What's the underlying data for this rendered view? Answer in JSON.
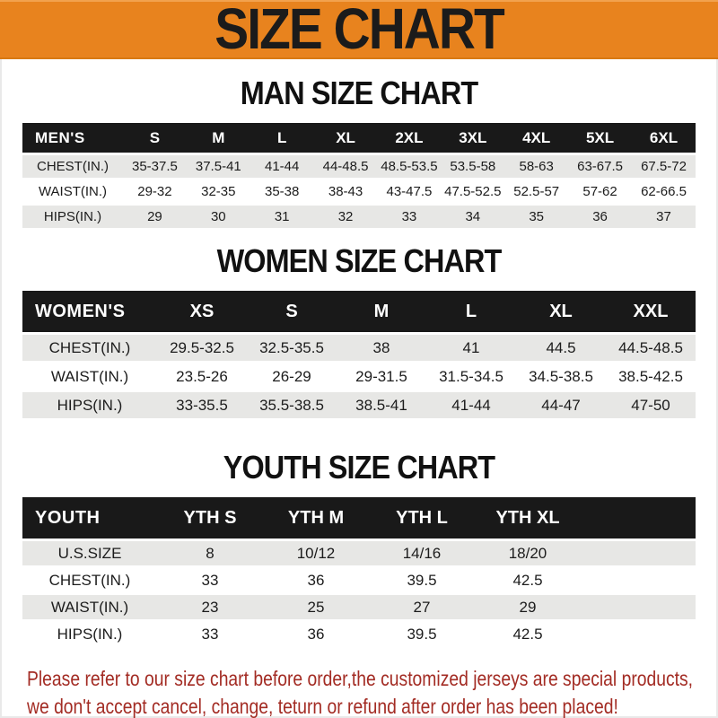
{
  "banner": {
    "title": "SIZE CHART"
  },
  "sections": [
    {
      "key": "men",
      "heading": "MAN SIZE CHART",
      "corner_label": "MEN'S",
      "columns": [
        "S",
        "M",
        "L",
        "XL",
        "2XL",
        "3XL",
        "4XL",
        "5XL",
        "6XL"
      ],
      "rows": [
        {
          "label": "CHEST(IN.)",
          "values": [
            "35-37.5",
            "37.5-41",
            "41-44",
            "44-48.5",
            "48.5-53.5",
            "53.5-58",
            "58-63",
            "63-67.5",
            "67.5-72"
          ]
        },
        {
          "label": "WAIST(IN.)",
          "values": [
            "29-32",
            "32-35",
            "35-38",
            "38-43",
            "43-47.5",
            "47.5-52.5",
            "52.5-57",
            "57-62",
            "62-66.5"
          ]
        },
        {
          "label": "HIPS(IN.)",
          "values": [
            "29",
            "30",
            "31",
            "32",
            "33",
            "34",
            "35",
            "36",
            "37"
          ]
        }
      ]
    },
    {
      "key": "women",
      "heading": "WOMEN SIZE CHART",
      "corner_label": "WOMEN'S",
      "columns": [
        "XS",
        "S",
        "M",
        "L",
        "XL",
        "XXL"
      ],
      "rows": [
        {
          "label": "CHEST(IN.)",
          "values": [
            "29.5-32.5",
            "32.5-35.5",
            "38",
            "41",
            "44.5",
            "44.5-48.5"
          ]
        },
        {
          "label": "WAIST(IN.)",
          "values": [
            "23.5-26",
            "26-29",
            "29-31.5",
            "31.5-34.5",
            "34.5-38.5",
            "38.5-42.5"
          ]
        },
        {
          "label": "HIPS(IN.)",
          "values": [
            "33-35.5",
            "35.5-38.5",
            "38.5-41",
            "41-44",
            "44-47",
            "47-50"
          ]
        }
      ]
    },
    {
      "key": "youth",
      "heading": "YOUTH SIZE CHART",
      "corner_label": "YOUTH",
      "columns": [
        "YTH S",
        "YTH M",
        "YTH L",
        "YTH XL"
      ],
      "rows": [
        {
          "label": "U.S.SIZE",
          "values": [
            "8",
            "10/12",
            "14/16",
            "18/20"
          ]
        },
        {
          "label": "CHEST(IN.)",
          "values": [
            "33",
            "36",
            "39.5",
            "42.5"
          ]
        },
        {
          "label": "WAIST(IN.)",
          "values": [
            "23",
            "25",
            "27",
            "29"
          ]
        },
        {
          "label": "HIPS(IN.)",
          "values": [
            "33",
            "36",
            "39.5",
            "42.5"
          ]
        }
      ]
    }
  ],
  "footer": {
    "line1": "Please refer to our size chart before order,the customized jerseys are special products,",
    "line2": "we don't accept cancel, change, teturn or refund after order has been placed!"
  },
  "colors": {
    "banner_bg": "#E8831E",
    "banner_fg": "#1B1B1B",
    "header_bar_bg": "#191919",
    "header_bar_fg": "#FFFFFF",
    "row_shade": "#E7E7E5",
    "row_plain": "#FFFFFF",
    "note_fg": "#A32C24"
  }
}
